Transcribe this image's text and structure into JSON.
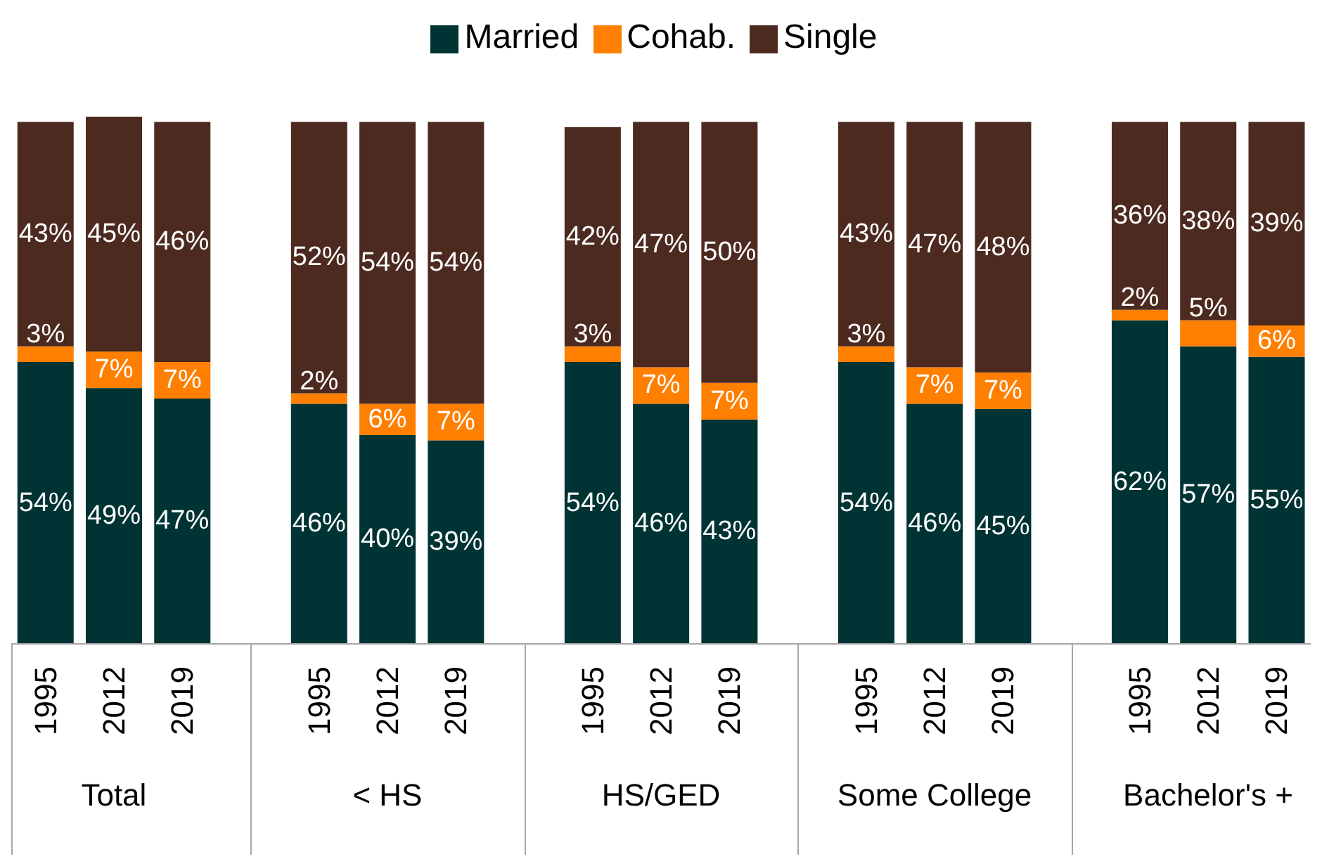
{
  "chart_data": {
    "type": "bar",
    "stacked": true,
    "legend": "top",
    "categories": [
      "1995",
      "2012",
      "2019",
      null,
      "1995",
      "2012",
      "2019",
      null,
      "1995",
      "2012",
      "2019",
      null,
      "1995",
      "2012",
      "2019",
      null,
      "1995",
      "2012",
      "2019"
    ],
    "series": [
      {
        "name": "Married",
        "color": "#003333",
        "values": [
          54,
          49,
          47,
          null,
          46,
          40,
          39,
          null,
          54,
          46,
          43,
          null,
          54,
          46,
          45,
          null,
          62,
          57,
          55
        ],
        "value_labels": [
          "54%",
          "49%",
          "47%",
          null,
          "46%",
          "40%",
          "39%",
          null,
          "54%",
          "46%",
          "43%",
          null,
          "54%",
          "46%",
          "45%",
          null,
          "62%",
          "57%",
          "55%"
        ]
      },
      {
        "name": "Cohab.",
        "color": "#ff7f00",
        "values": [
          3,
          7,
          7,
          null,
          2,
          6,
          7,
          null,
          3,
          7,
          7,
          null,
          3,
          7,
          7,
          null,
          2,
          5,
          6
        ],
        "value_labels": [
          "3%",
          "7%",
          "7%",
          null,
          "2%",
          "6%",
          "7%",
          null,
          "3%",
          "7%",
          "7%",
          null,
          "3%",
          "7%",
          "7%",
          null,
          "2%",
          "5%",
          "6%"
        ]
      },
      {
        "name": "Single",
        "color": "#4d2a1f",
        "values": [
          43,
          45,
          46,
          null,
          52,
          54,
          54,
          null,
          42,
          47,
          50,
          null,
          43,
          47,
          48,
          null,
          36,
          38,
          39
        ],
        "value_labels": [
          "43%",
          "45%",
          "46%",
          null,
          "52%",
          "54%",
          "54%",
          null,
          "42%",
          "47%",
          "50%",
          null,
          "43%",
          "47%",
          "48%",
          null,
          "36%",
          "38%",
          "39%"
        ]
      }
    ],
    "annotations": [
      "Total",
      "< HS",
      "HS/GED",
      "Some College",
      "Bachelor's +"
    ]
  }
}
